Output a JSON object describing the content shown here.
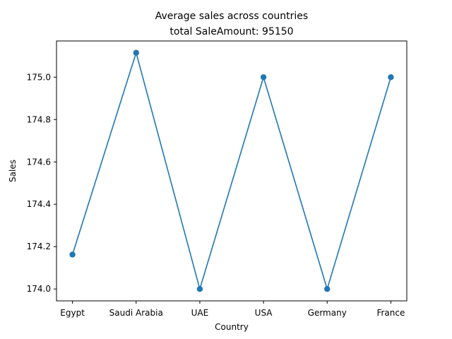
{
  "chart_data": {
    "type": "line",
    "title": "Average sales across countries",
    "subtitle": "total SaleAmount: 95150",
    "xlabel": "Country",
    "ylabel": "Sales",
    "categories": [
      "Egypt",
      "Saudi Arabia",
      "UAE",
      "USA",
      "Germany",
      "France"
    ],
    "series": [
      {
        "values": [
          174.1625,
          175.1153,
          174.0,
          175.0,
          174.0,
          175.0
        ]
      }
    ],
    "ylim": [
      173.944,
      175.171
    ],
    "yticks": [
      "174.0",
      "174.2",
      "174.4",
      "174.6",
      "174.8",
      "175.0"
    ],
    "ytick_values": [
      174.0,
      174.2,
      174.4,
      174.6,
      174.8,
      175.0
    ],
    "grid": false,
    "color": "#1f77b4"
  }
}
